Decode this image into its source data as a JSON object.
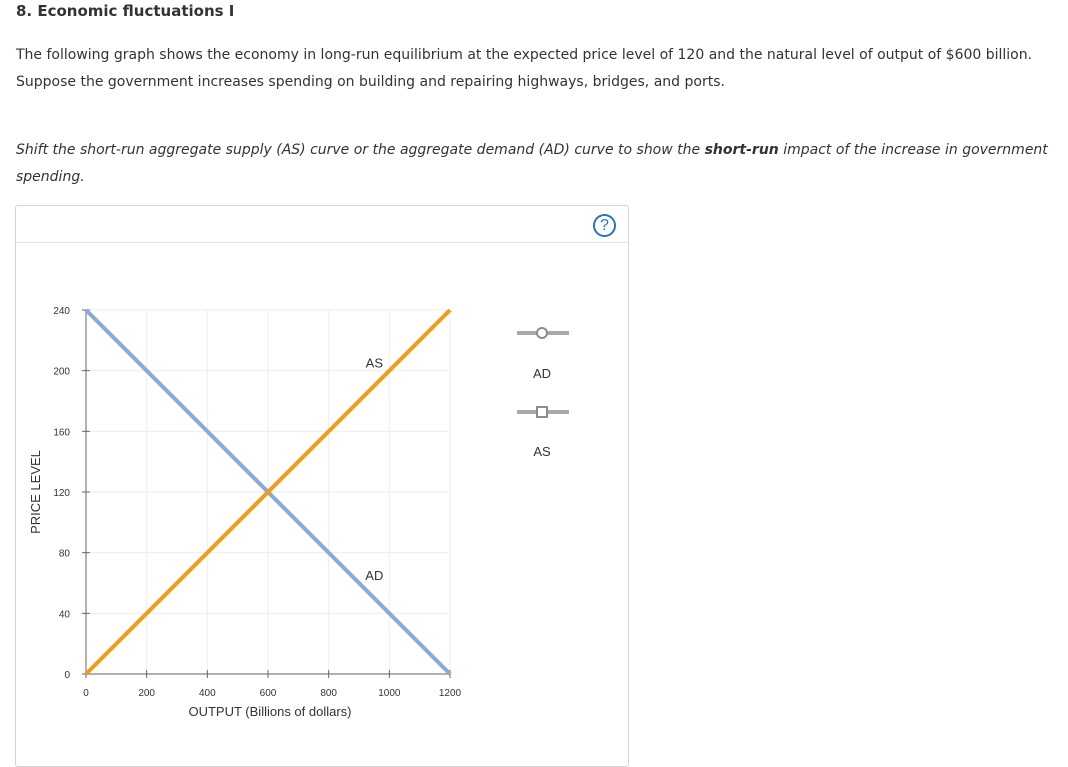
{
  "question": {
    "title": "8. Economic fluctuations I",
    "intro_line1": "The following graph shows the economy in long-run equilibrium at the expected price level of 120 and the natural level of output of $600 billion.",
    "intro_line2": "Suppose the government increases spending on building and repairing highways, bridges, and ports.",
    "instruction_part1": "Shift the short-run aggregate supply (AS) curve or the aggregate demand (AD) curve to show the",
    "instruction_bold": "short-run",
    "instruction_part2": "impact of the increase in government",
    "instruction_line2": "spending."
  },
  "help_icon": {
    "icon": "help-icon",
    "glyph": "?"
  },
  "legend": {
    "ad_label": "AD",
    "as_label": "AS"
  },
  "colors": {
    "ad": "#88aad6",
    "as": "#f39a1f",
    "legend_line": "#a9a9a9",
    "grid": "#eeeeee",
    "axis": "#666666",
    "help": "#2d73b7"
  },
  "chart_data": {
    "type": "line",
    "xlabel": "OUTPUT (Billions of dollars)",
    "ylabel": "PRICE LEVEL",
    "xlim": [
      0,
      1200
    ],
    "ylim": [
      0,
      240
    ],
    "xticks": [
      0,
      200,
      400,
      600,
      800,
      1000,
      1200
    ],
    "yticks": [
      0,
      40,
      80,
      120,
      160,
      200,
      240
    ],
    "grid": true,
    "legend_position": "right",
    "series": [
      {
        "name": "AD",
        "x": [
          0,
          1200
        ],
        "y": [
          240,
          0
        ],
        "label_at": [
          1000,
          60
        ]
      },
      {
        "name": "AS",
        "x": [
          0,
          1200
        ],
        "y": [
          0,
          240
        ],
        "label_at": [
          1000,
          200
        ]
      }
    ]
  }
}
